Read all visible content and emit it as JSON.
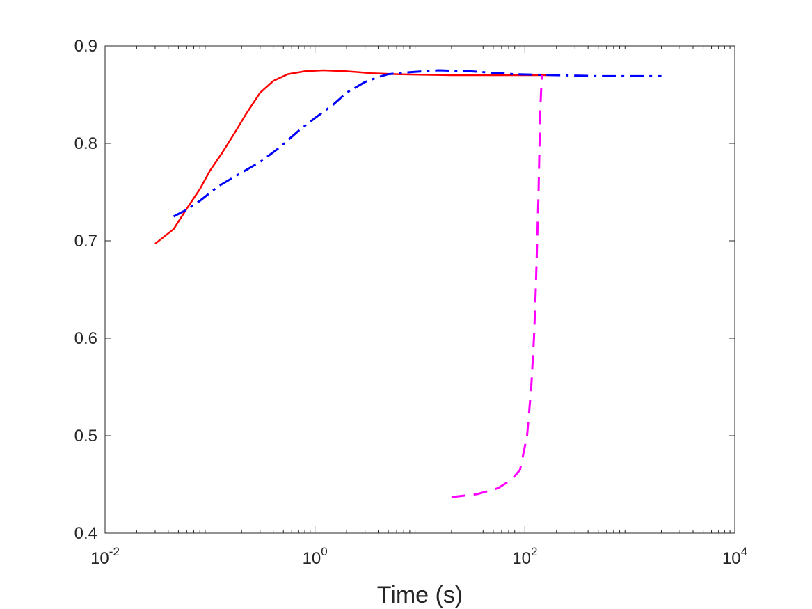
{
  "chart_data": {
    "type": "line",
    "title": "",
    "xlabel": "Time (s)",
    "ylabel": "",
    "xscale": "log",
    "xlim": [
      0.01,
      10000
    ],
    "ylim": [
      0.4,
      0.9
    ],
    "grid": false,
    "x_tick_labels": [
      {
        "base": "10",
        "exp": "-2",
        "value": 0.01
      },
      {
        "base": "10",
        "exp": "0",
        "value": 1
      },
      {
        "base": "10",
        "exp": "2",
        "value": 100
      },
      {
        "base": "10",
        "exp": "4",
        "value": 10000
      }
    ],
    "y_tick_labels": [
      "0.4",
      "0.5",
      "0.6",
      "0.7",
      "0.8",
      "0.9"
    ],
    "y_tick_values": [
      0.4,
      0.5,
      0.6,
      0.7,
      0.8,
      0.9
    ],
    "series": [
      {
        "color": "#ff0000",
        "style": "solid",
        "x": [
          0.03,
          0.045,
          0.06,
          0.08,
          0.1,
          0.13,
          0.17,
          0.22,
          0.3,
          0.4,
          0.55,
          0.8,
          1.2,
          2,
          3.5,
          6,
          10,
          20,
          50,
          100,
          200
        ],
        "y": [
          0.697,
          0.712,
          0.733,
          0.753,
          0.772,
          0.79,
          0.81,
          0.83,
          0.852,
          0.864,
          0.871,
          0.874,
          0.875,
          0.874,
          0.872,
          0.871,
          0.8705,
          0.87,
          0.87,
          0.87,
          0.87
        ]
      },
      {
        "color": "#0000ff",
        "style": "dashdot",
        "x": [
          0.045,
          0.06,
          0.08,
          0.12,
          0.2,
          0.3,
          0.45,
          0.7,
          1,
          1.5,
          2,
          3,
          4,
          5,
          8,
          15,
          30,
          80,
          200,
          500,
          1000,
          2000
        ],
        "y": [
          0.725,
          0.732,
          0.741,
          0.756,
          0.77,
          0.781,
          0.795,
          0.813,
          0.826,
          0.84,
          0.852,
          0.863,
          0.868,
          0.871,
          0.873,
          0.875,
          0.874,
          0.871,
          0.87,
          0.869,
          0.869,
          0.869
        ]
      },
      {
        "color": "#ff00ff",
        "style": "dashed",
        "x": [
          20,
          35,
          55,
          75,
          90,
          105,
          115,
          122,
          127,
          131,
          135,
          138,
          141,
          145
        ],
        "y": [
          0.437,
          0.44,
          0.446,
          0.455,
          0.465,
          0.5,
          0.55,
          0.6,
          0.65,
          0.7,
          0.75,
          0.8,
          0.84,
          0.87
        ]
      }
    ]
  }
}
